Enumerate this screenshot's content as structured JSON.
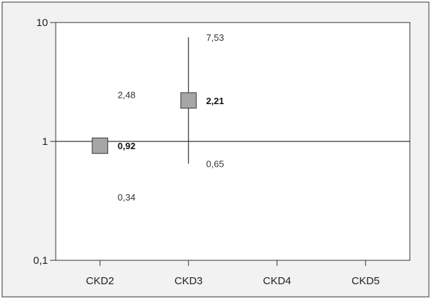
{
  "chart_data": {
    "type": "scatter",
    "title": "",
    "xlabel": "",
    "ylabel": "",
    "y_scale": "log",
    "ylim": [
      0.1,
      10
    ],
    "y_ticks": [
      {
        "value": 0.1,
        "label": "0,1"
      },
      {
        "value": 1,
        "label": "1"
      },
      {
        "value": 10,
        "label": "10"
      }
    ],
    "reference_line": 1,
    "grid": false,
    "categories": [
      "CKD2",
      "CKD3",
      "CKD4",
      "CKD5"
    ],
    "points": [
      {
        "category": "CKD2",
        "estimate": 0.92,
        "estimate_label": "0,92",
        "lower": 0.34,
        "lower_label": "0,34",
        "upper": 2.48,
        "upper_label": "2,48",
        "show_whisker": false
      },
      {
        "category": "CKD3",
        "estimate": 2.21,
        "estimate_label": "2,21",
        "lower": 0.65,
        "lower_label": "0,65",
        "upper": 7.53,
        "upper_label": "7,53",
        "show_whisker": true
      }
    ],
    "colors": {
      "marker_fill": "#a6a6a6",
      "marker_stroke": "#333333",
      "frame_bg": "#f2f2f2",
      "axis": "#333333"
    }
  }
}
